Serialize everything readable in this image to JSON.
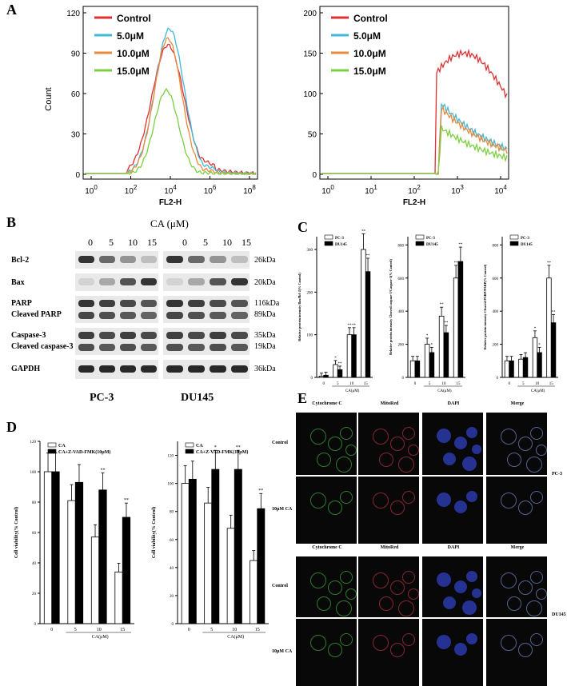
{
  "panels": {
    "a": "A",
    "b": "B",
    "c": "C",
    "d": "D",
    "e": "E"
  },
  "flow": {
    "legend": [
      "Control",
      "5.0μM",
      "10.0μM",
      "15.0μM"
    ],
    "colors": [
      "#e03030",
      "#40b8d8",
      "#e88a3c",
      "#7cd040"
    ],
    "xlabel": "FL2-H",
    "ylabel": "Count",
    "xticks": [
      "10",
      "10",
      "10",
      "10",
      "10"
    ],
    "xtick_exp": [
      "0",
      "2",
      "4",
      "6",
      "8"
    ],
    "left_yticks": [
      "0",
      "30",
      "60",
      "90",
      "120"
    ],
    "right_yticks": [
      "0",
      "50",
      "100",
      "150",
      "200"
    ],
    "right_xticks_exp": [
      "0",
      "1",
      "2",
      "3",
      "4"
    ]
  },
  "blot": {
    "title": "CA (μM)",
    "lanes": [
      "0",
      "5",
      "10",
      "15"
    ],
    "rows": [
      "Bcl-2",
      "Bax",
      "PARP",
      "Cleaved PARP",
      "Caspase-3",
      "Cleaved caspase-3",
      "GAPDH"
    ],
    "kda": [
      "26kDa",
      "20kDa",
      "116kDa",
      "89kDa",
      "35kDa",
      "19kDa",
      "36kDa"
    ],
    "cells": [
      "PC-3",
      "DU145"
    ]
  },
  "chart_data": [
    {
      "type": "bar",
      "ylabel": "Relative protein intensity Bax/Bcl-2(% Control)",
      "xlabel": "CA(μM)",
      "categories": [
        "0",
        "5",
        "10",
        "15"
      ],
      "series": [
        {
          "name": "PC-3",
          "values": [
            3,
            30,
            100,
            300
          ]
        },
        {
          "name": "DU145",
          "values": [
            5,
            18,
            100,
            248
          ]
        }
      ],
      "stars": [
        [
          "",
          ""
        ],
        [
          "*",
          "**"
        ],
        [
          "**",
          "**"
        ],
        [
          "**",
          "**"
        ]
      ],
      "yticks": [
        "0",
        "100",
        "200",
        "300"
      ],
      "ylim": [
        0,
        330
      ]
    },
    {
      "type": "bar",
      "ylabel": "Relative protein intensity Cleaved caspase-3/Caspase-3(% Control)",
      "xlabel": "CA(μM)",
      "categories": [
        "0",
        "5",
        "10",
        "15"
      ],
      "series": [
        {
          "name": "PC-3",
          "values": [
            100,
            200,
            370,
            600
          ]
        },
        {
          "name": "DU145",
          "values": [
            100,
            150,
            270,
            700
          ]
        }
      ],
      "stars": [
        [
          "",
          ""
        ],
        [
          "*",
          "*"
        ],
        [
          "**",
          "**"
        ],
        [
          "**",
          "**"
        ]
      ],
      "yticks": [
        "0",
        "200",
        "400",
        "600",
        "800"
      ],
      "ylim": [
        0,
        850
      ]
    },
    {
      "type": "bar",
      "ylabel": "Relative protein intensity Cleaved PARP/PARP(% Control)",
      "xlabel": "CA(μM)",
      "categories": [
        "0",
        "5",
        "10",
        "15"
      ],
      "series": [
        {
          "name": "PC-3",
          "values": [
            100,
            110,
            240,
            600
          ]
        },
        {
          "name": "DU145",
          "values": [
            100,
            120,
            150,
            330
          ]
        }
      ],
      "stars": [
        [
          "",
          ""
        ],
        [
          "",
          ""
        ],
        [
          "*",
          "*"
        ],
        [
          "**",
          "**"
        ]
      ],
      "yticks": [
        "0",
        "200",
        "400",
        "600",
        "800"
      ],
      "ylim": [
        0,
        850
      ]
    },
    {
      "type": "bar",
      "ylabel": "Cell viability(% Control)",
      "xlabel": "CA(μM)",
      "categories": [
        "0",
        "5",
        "10",
        "15"
      ],
      "series": [
        {
          "name": "CA",
          "values": [
            100,
            81,
            57,
            34
          ]
        },
        {
          "name": "CA+Z-VAD-FMK(10μM)",
          "values": [
            100,
            93,
            88,
            70
          ]
        }
      ],
      "stars": [
        [
          "",
          ""
        ],
        [
          "",
          ""
        ],
        [
          "",
          "**"
        ],
        [
          "",
          "**"
        ]
      ],
      "yticks": [
        "0",
        "20",
        "40",
        "60",
        "80",
        "100",
        "120"
      ],
      "ylim": [
        0,
        120
      ]
    },
    {
      "type": "bar",
      "ylabel": "Cell viability(% Control)",
      "xlabel": "CA(μM)",
      "categories": [
        "0",
        "5",
        "10",
        "15"
      ],
      "series": [
        {
          "name": "CA",
          "values": [
            100,
            86,
            68,
            45
          ]
        },
        {
          "name": "CA+Z-VAD-FMK(10μM)",
          "values": [
            103,
            110,
            110,
            82
          ]
        }
      ],
      "stars": [
        [
          "",
          ""
        ],
        [
          "",
          "*"
        ],
        [
          "",
          "**"
        ],
        [
          "",
          "**"
        ]
      ],
      "yticks": [
        "0",
        "20",
        "40",
        "60",
        "80",
        "100",
        "120"
      ],
      "ylim": [
        0,
        130
      ]
    }
  ],
  "micro": {
    "cols": [
      "Cytochrome C",
      "MitoRed",
      "DAPI",
      "Merge"
    ],
    "rows": [
      "Control",
      "10μM CA"
    ],
    "cells": [
      "PC-3",
      "DU145"
    ],
    "channel_colors": [
      "#3ca03c",
      "#b03040",
      "#3040c0",
      "#7080c0"
    ]
  }
}
